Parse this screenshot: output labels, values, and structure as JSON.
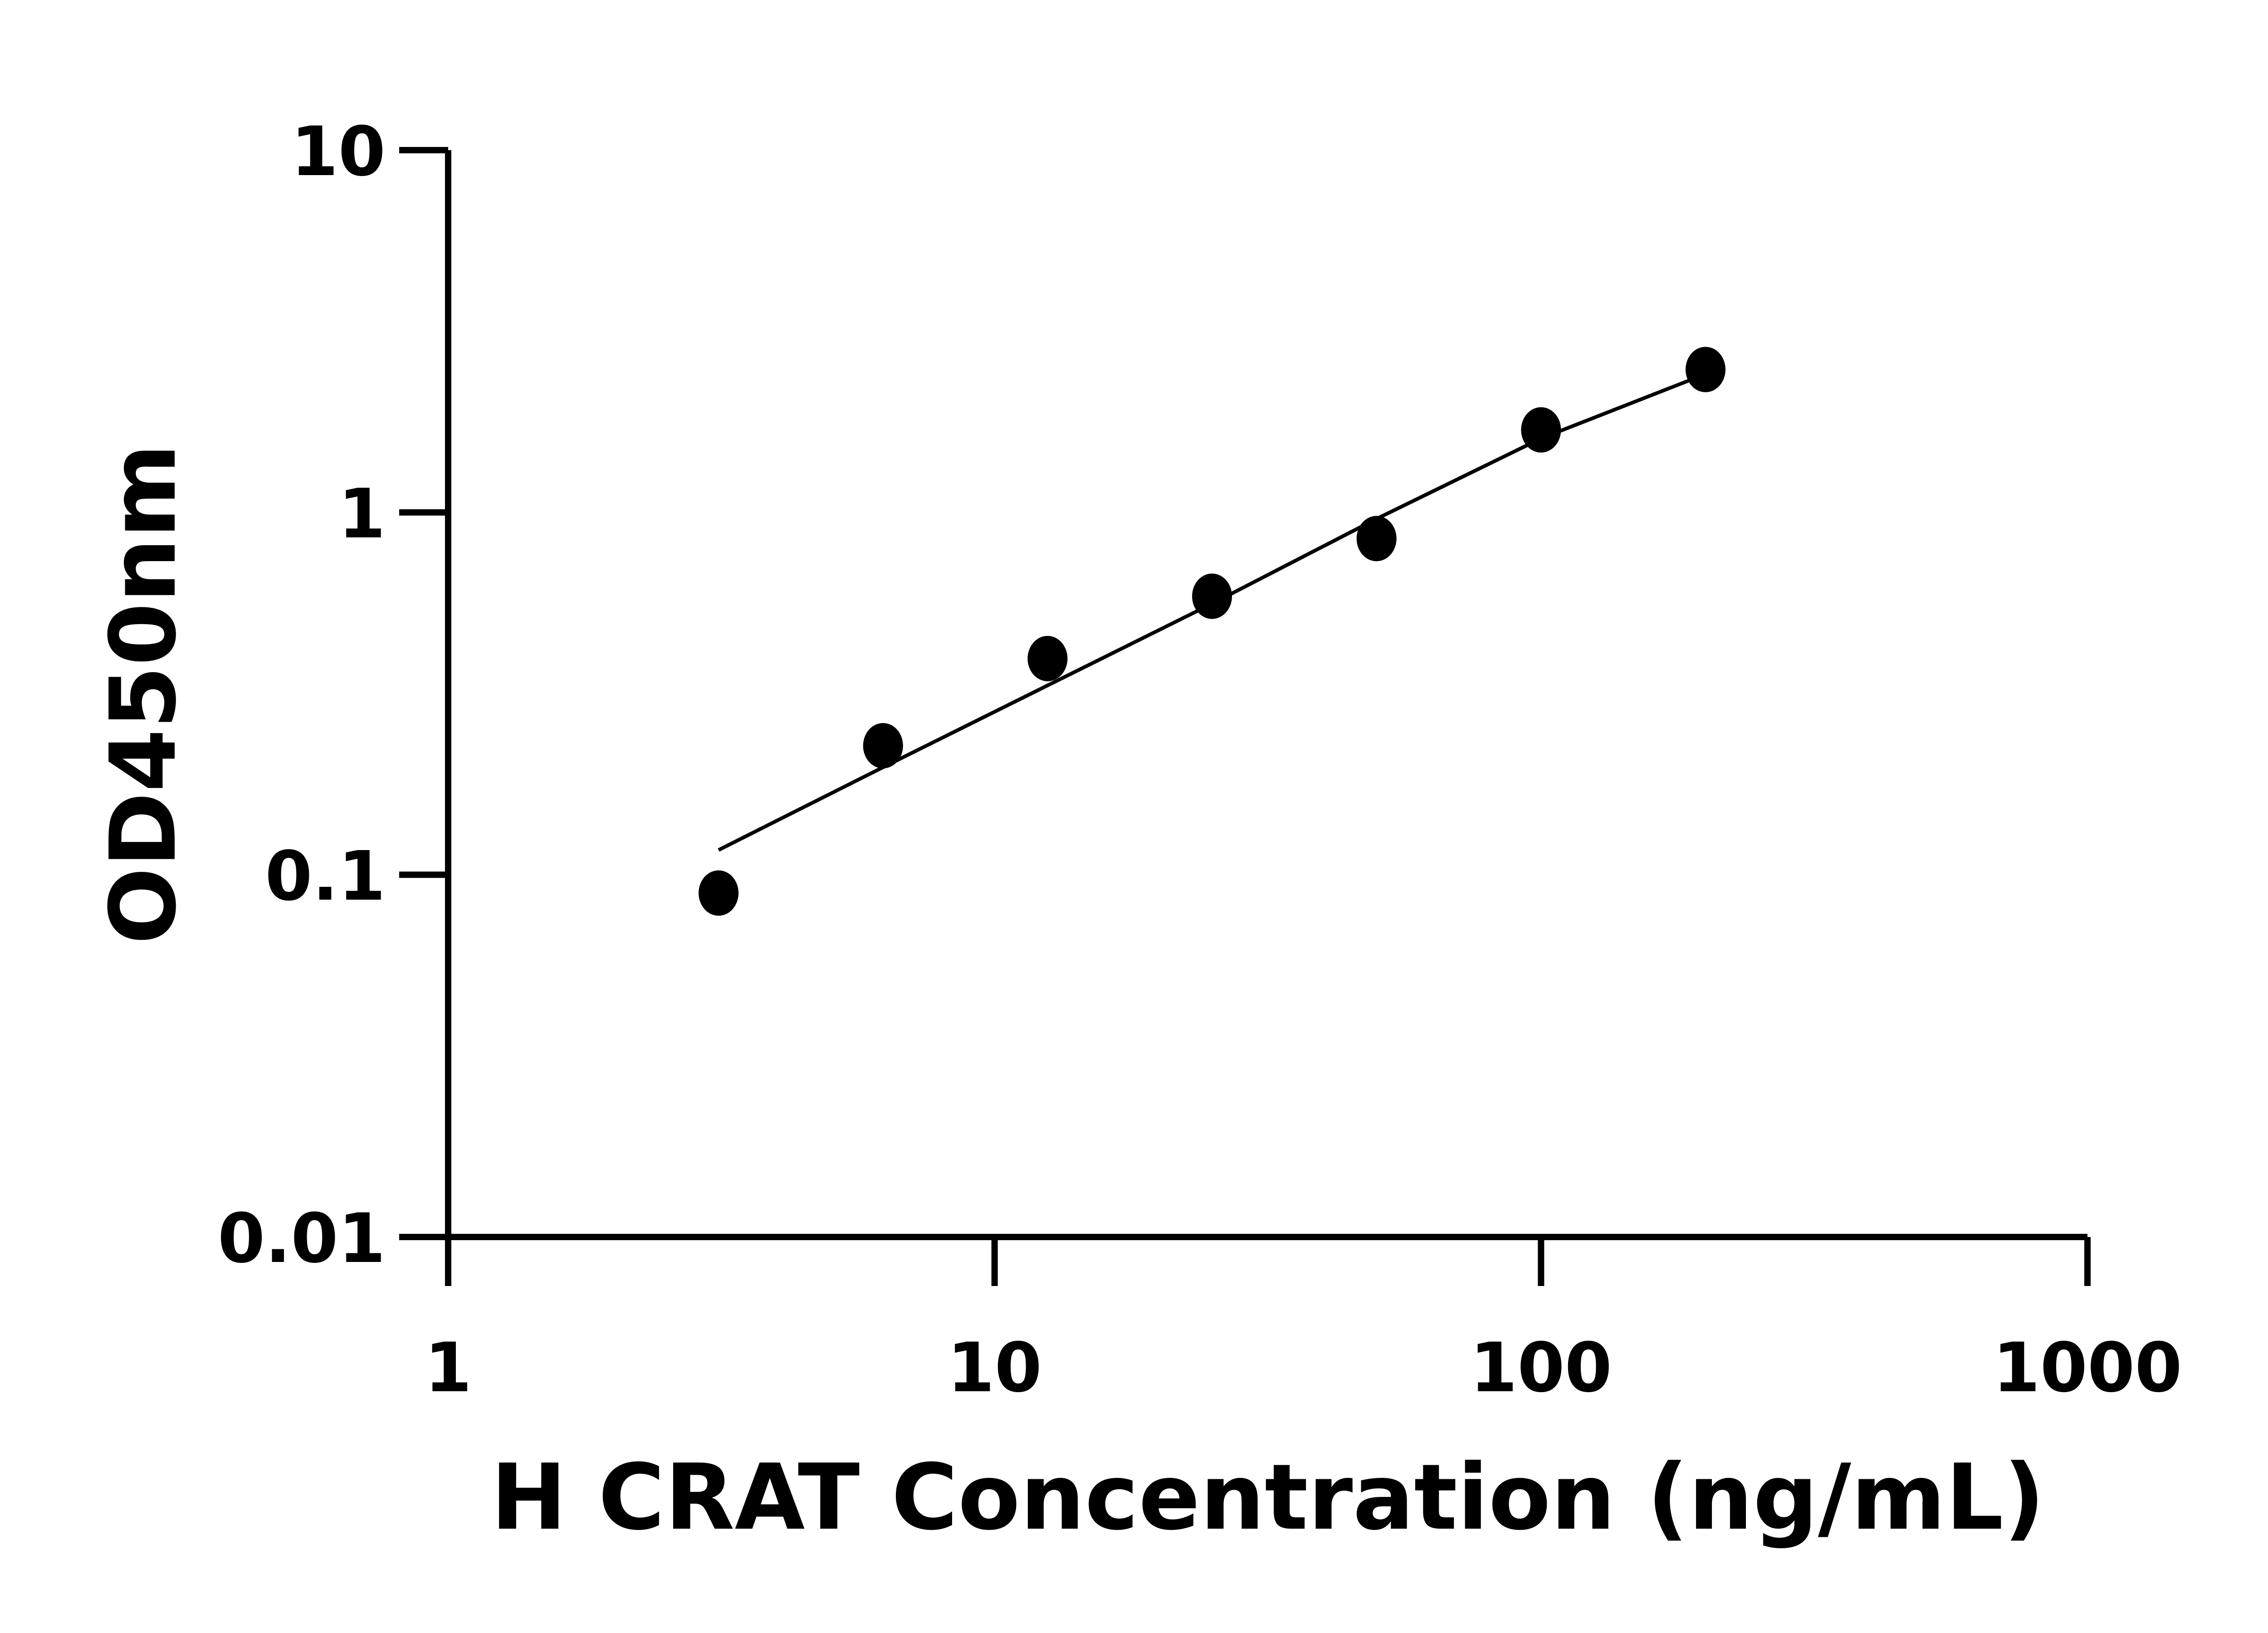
{
  "chart_data": {
    "type": "scatter",
    "title": "",
    "xlabel": "H CRAT Concentration (ng/mL)",
    "ylabel": "OD450nm",
    "x_scale": "log",
    "y_scale": "log",
    "xlim": [
      1,
      1000
    ],
    "ylim": [
      0.01,
      10
    ],
    "x_ticks": [
      "1",
      "10",
      "100",
      "1000"
    ],
    "y_ticks": [
      "0.01",
      "0.1",
      "1",
      "10"
    ],
    "x_tick_values": [
      1,
      10,
      100,
      1000
    ],
    "y_tick_values": [
      0.01,
      0.1,
      1,
      10
    ],
    "grid": false,
    "points": {
      "x": [
        3.125,
        6.25,
        12.5,
        25,
        50,
        100,
        200
      ],
      "y": [
        0.089,
        0.227,
        0.395,
        0.587,
        0.847,
        1.69,
        2.48
      ]
    },
    "fit_line": {
      "x": [
        3.125,
        6.25,
        12.5,
        25,
        50,
        100,
        200
      ],
      "y": [
        0.117,
        0.198,
        0.333,
        0.56,
        0.96,
        1.6,
        2.41
      ]
    },
    "colors": {
      "marker": "#000000",
      "line": "#000000",
      "axis": "#000000"
    }
  }
}
